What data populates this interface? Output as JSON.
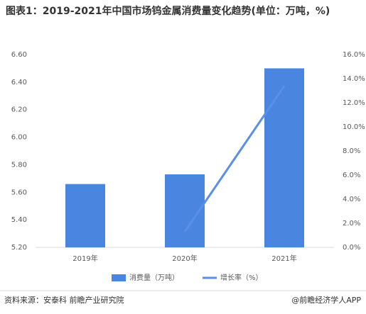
{
  "chart_data": {
    "type": "bar",
    "title": "图表1：2019-2021年中国市场钨金属消费量变化趋势(单位：万吨，%)",
    "categories": [
      "2019年",
      "2020年",
      "2021年"
    ],
    "series": [
      {
        "name": "消费量（万吨）",
        "type": "bar",
        "color": "#4a86e0",
        "values": [
          5.66,
          5.73,
          6.5
        ]
      },
      {
        "name": "增长率（%）",
        "type": "line",
        "axis": "y2",
        "color": "#5b8fe6",
        "values": [
          null,
          1.3,
          13.4
        ]
      }
    ],
    "ylim": [
      5.2,
      6.6
    ],
    "yticks": [
      {
        "value": 5.2,
        "label": "5.20"
      },
      {
        "value": 5.4,
        "label": "5.40"
      },
      {
        "value": 5.6,
        "label": "5.60"
      },
      {
        "value": 5.8,
        "label": "5.80"
      },
      {
        "value": 6.0,
        "label": "6.00"
      },
      {
        "value": 6.2,
        "label": "6.20"
      },
      {
        "value": 6.4,
        "label": "6.40"
      },
      {
        "value": 6.6,
        "label": "6.60"
      }
    ],
    "y2lim": [
      0,
      16
    ],
    "y2ticks": [
      {
        "value": 0,
        "label": "0.0%"
      },
      {
        "value": 2,
        "label": "2.0%"
      },
      {
        "value": 4,
        "label": "4.0%"
      },
      {
        "value": 6,
        "label": "6.0%"
      },
      {
        "value": 8,
        "label": "8.0%"
      },
      {
        "value": 10,
        "label": "10.0%"
      },
      {
        "value": 12,
        "label": "12.0%"
      },
      {
        "value": 14,
        "label": "14.0%"
      },
      {
        "value": 16,
        "label": "16.0%"
      }
    ],
    "grid": false,
    "legend": "bottom",
    "source": "资料来源：安泰科 前瞻产业研究院",
    "credit": "@前瞻经济学人APP"
  }
}
